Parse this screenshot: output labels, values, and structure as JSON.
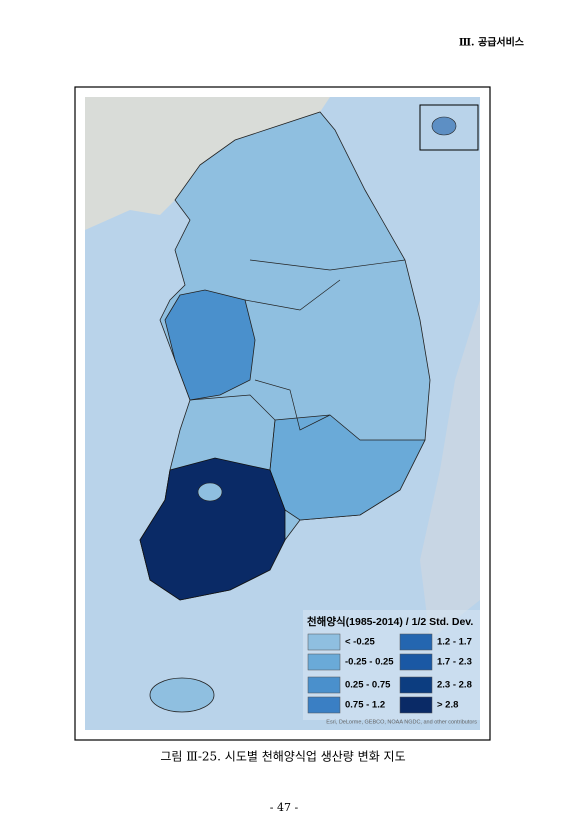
{
  "header": {
    "section": "Ⅲ. 공급서비스"
  },
  "figure": {
    "legend": {
      "title": "천해양식(1985-2014) / 1/2 Std. Dev.",
      "items": [
        {
          "label": "< -0.25",
          "color": "#8fbfe0"
        },
        {
          "label": "-0.25 - 0.25",
          "color": "#6aaad8"
        },
        {
          "label": "0.25 - 0.75",
          "color": "#4a90cc"
        },
        {
          "label": "0.75 - 1.2",
          "color": "#3a7fc4"
        },
        {
          "label": "1.2 - 1.7",
          "color": "#2466b0"
        },
        {
          "label": "1.7 - 2.3",
          "color": "#1a58a4"
        },
        {
          "label": "2.3 - 2.8",
          "color": "#0c3d80"
        },
        {
          "label": "> 2.8",
          "color": "#0a2a66"
        }
      ]
    },
    "attribution": "Esri, DeLorme, GEBCO, NOAA NGDC, and other contributors"
  },
  "caption": "그림 Ⅲ-25. 시도별 천해양식업 생산량 변화 지도",
  "page_number": "- 47 -"
}
